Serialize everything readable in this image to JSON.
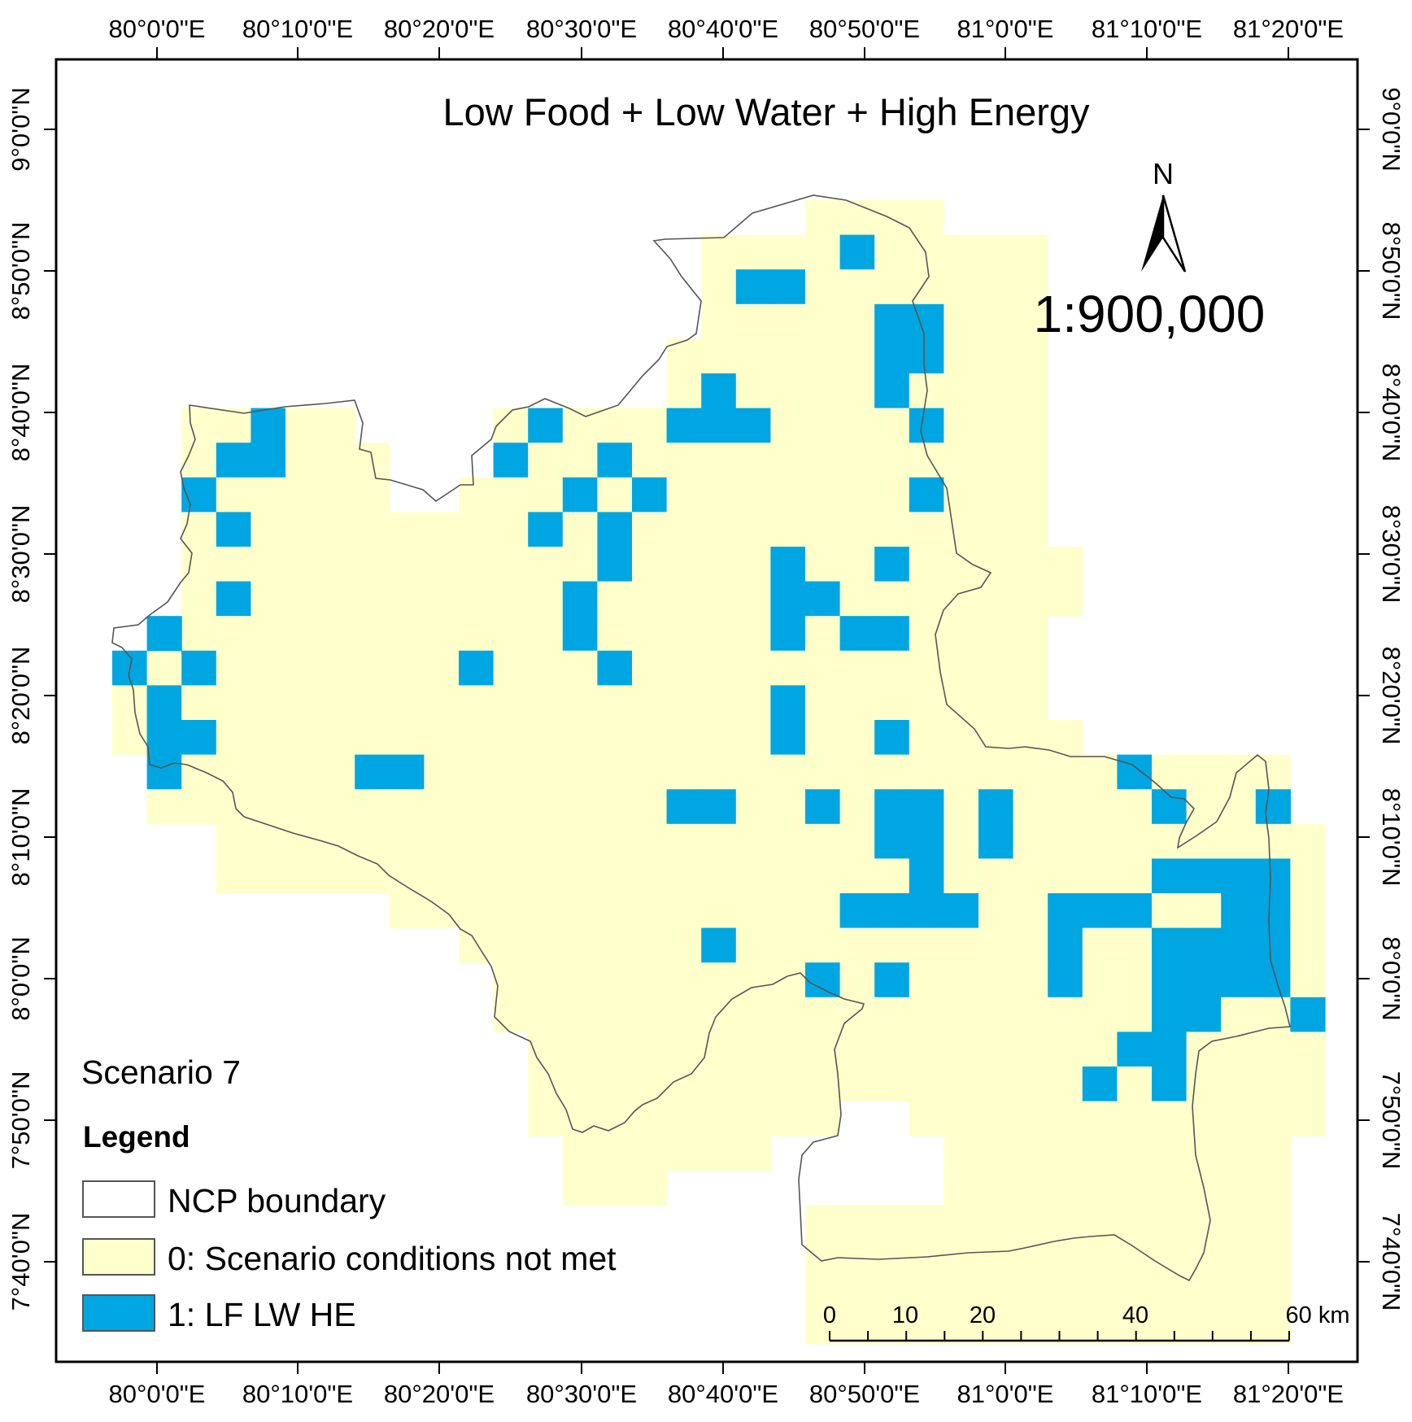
{
  "map": {
    "title": "Low Food + Low Water + High Energy",
    "scale_text": "1:900,000",
    "north_label": "N",
    "scenario_label": "Scenario 7",
    "legend": {
      "title": "Legend",
      "items": [
        {
          "label": "NCP boundary",
          "color": "#ffffff"
        },
        {
          "label": "0: Scenario conditions not met",
          "color": "#ffffcc"
        },
        {
          "label": "1: LF LW HE",
          "color": "#00a6e1"
        }
      ]
    },
    "scalebar": {
      "labels": [
        "0",
        "10",
        "20",
        "40",
        "60 km"
      ]
    },
    "longitude_labels": [
      "80°0'0\"E",
      "80°10'0\"E",
      "80°20'0\"E",
      "80°30'0\"E",
      "80°40'0\"E",
      "80°50'0\"E",
      "81°0'0\"E",
      "81°10'0\"E",
      "81°20'0\"E"
    ],
    "latitude_labels": [
      "7°40'0\"N",
      "7°50'0\"N",
      "8°0'0\"N",
      "8°10'0\"N",
      "8°20'0\"N",
      "8°30'0\"N",
      "8°40'0\"N",
      "8°50'0\"N",
      "9°0'0\"N"
    ],
    "colors": {
      "not_met": "#ffffcc",
      "met": "#00a6e1",
      "boundary": "#555555",
      "frame": "#000000"
    }
  }
}
